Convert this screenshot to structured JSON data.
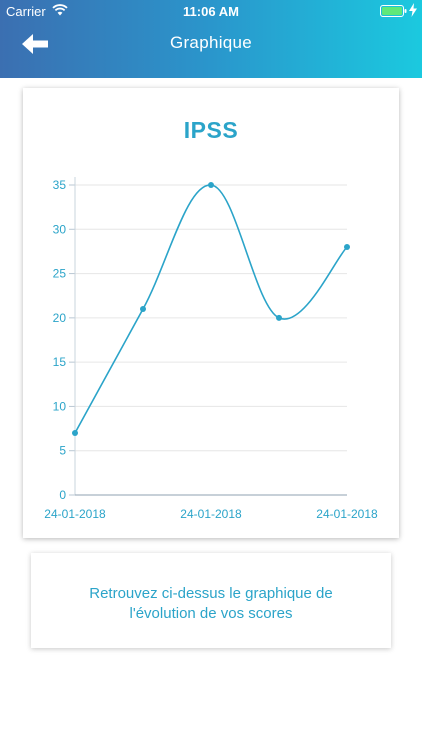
{
  "status_bar": {
    "carrier": "Carrier",
    "time": "11:06 AM",
    "wifi_icon": "wifi-icon",
    "battery_icon": "battery-icon",
    "charging_icon": "charging-bolt-icon"
  },
  "nav": {
    "title": "Graphique",
    "back_icon": "arrow-left-icon"
  },
  "colors": {
    "header_start": "#3b6fb1",
    "header_end": "#1bc9df",
    "accent": "#2ba4c9"
  },
  "chart_data": {
    "type": "line",
    "title": "IPSS",
    "x": [
      "24-01-2018",
      "24-01-2018",
      "24-01-2018",
      "24-01-2018",
      "24-01-2018"
    ],
    "series": [
      {
        "values": [
          7,
          21,
          35,
          20,
          28
        ]
      }
    ],
    "x_tick_labels": [
      "24-01-2018",
      "24-01-2018",
      "24-01-2018"
    ],
    "y_ticks": [
      0,
      5,
      10,
      15,
      20,
      25,
      30,
      35
    ],
    "ylim": [
      0,
      35
    ],
    "grid": true,
    "color": "#2ba4c9"
  },
  "info": {
    "line1": "Retrouvez ci-dessus le graphique de",
    "line2": "l'évolution de vos scores"
  }
}
